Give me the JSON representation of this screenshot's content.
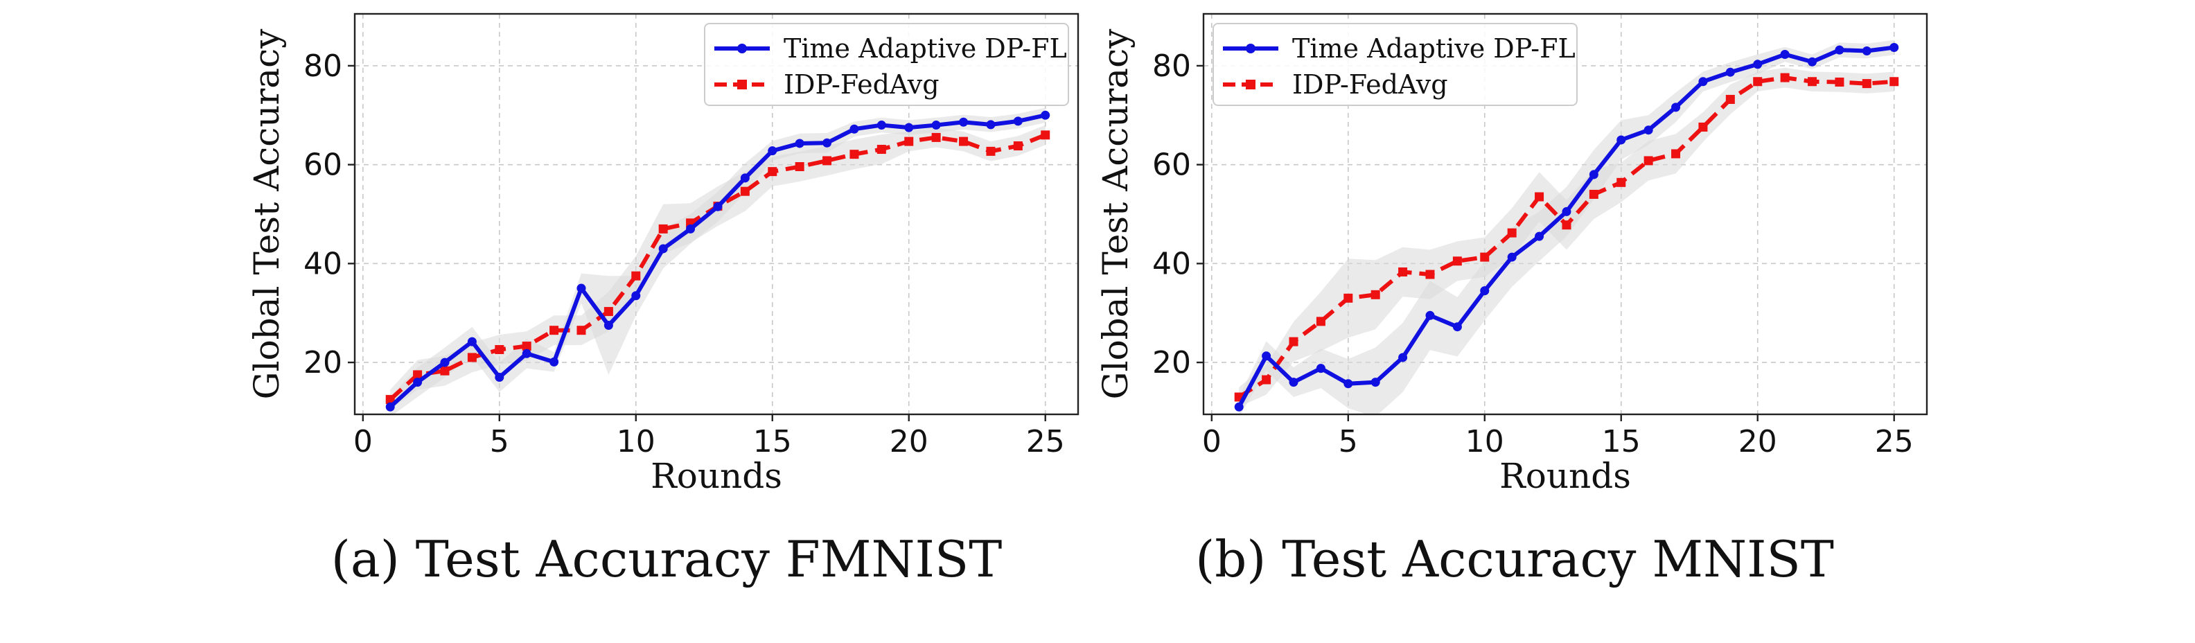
{
  "colors": {
    "series_a": "#1010e0",
    "series_b": "#ee1111",
    "band": "#d9d9d9"
  },
  "chart_data": [
    {
      "type": "line",
      "caption": "(a) Test Accuracy FMNIST",
      "xlabel": "Rounds",
      "ylabel": "Global Test Accuracy",
      "xlim": [
        -0.3,
        26.2
      ],
      "ylim": [
        9.5,
        90.5
      ],
      "xticks": [
        0,
        5,
        10,
        15,
        20,
        25
      ],
      "yticks": [
        20,
        40,
        60,
        80
      ],
      "grid": true,
      "legend_position": "top-right",
      "x": [
        1,
        2,
        3,
        4,
        5,
        6,
        7,
        8,
        9,
        10,
        11,
        12,
        13,
        14,
        15,
        16,
        17,
        18,
        19,
        20,
        21,
        22,
        23,
        24,
        25
      ],
      "series": [
        {
          "name": "Time Adaptive DP-FL",
          "style": "solid-circle",
          "values": [
            11.0,
            16.0,
            20.0,
            24.2,
            17.0,
            21.8,
            20.1,
            35.0,
            27.5,
            33.5,
            43.0,
            47.0,
            51.5,
            57.3,
            62.8,
            64.3,
            64.4,
            67.2,
            68.0,
            67.5,
            68.0,
            68.6,
            68.1,
            68.8,
            70.0
          ],
          "band": [
            2,
            3,
            3,
            3,
            3,
            3,
            2,
            3,
            10,
            4,
            4,
            3,
            3,
            3,
            2,
            2,
            2,
            1.5,
            1.5,
            1.5,
            1.5,
            1.5,
            1.5,
            1.5,
            1.5
          ]
        },
        {
          "name": "IDP-FedAvg",
          "style": "dashed-square",
          "values": [
            12.5,
            17.5,
            18.3,
            21.0,
            22.6,
            23.3,
            26.5,
            26.5,
            30.3,
            37.5,
            47.0,
            48.2,
            51.6,
            54.6,
            58.6,
            59.6,
            60.8,
            62.1,
            63.1,
            64.7,
            65.5,
            64.7,
            62.7,
            63.8,
            66.0
          ],
          "band": [
            2,
            3,
            3,
            3,
            3,
            3,
            3,
            3,
            4,
            4,
            5,
            4,
            4,
            4,
            3,
            3,
            3,
            3,
            3,
            2,
            2,
            2,
            2,
            2,
            2
          ]
        }
      ]
    },
    {
      "type": "line",
      "caption": "(b) Test Accuracy MNIST",
      "xlabel": "Rounds",
      "ylabel": "Global Test Accuracy",
      "xlim": [
        -0.3,
        26.2
      ],
      "ylim": [
        9.5,
        90.5
      ],
      "xticks": [
        0,
        5,
        10,
        15,
        20,
        25
      ],
      "yticks": [
        20,
        40,
        60,
        80
      ],
      "grid": true,
      "legend_position": "top-left",
      "x": [
        1,
        2,
        3,
        4,
        5,
        6,
        7,
        8,
        9,
        10,
        11,
        12,
        13,
        14,
        15,
        16,
        17,
        18,
        19,
        20,
        21,
        22,
        23,
        24,
        25
      ],
      "series": [
        {
          "name": "Time Adaptive DP-FL",
          "style": "solid-circle",
          "values": [
            11.0,
            21.3,
            16.0,
            18.8,
            15.7,
            16.0,
            21.0,
            29.5,
            27.2,
            34.5,
            41.3,
            45.5,
            50.5,
            58.0,
            65.0,
            67.0,
            71.6,
            76.8,
            78.7,
            80.3,
            82.3,
            80.8,
            83.2,
            83.0,
            83.7
          ],
          "band": [
            2,
            3,
            3,
            4,
            5,
            7,
            7,
            7,
            6,
            6,
            6,
            5,
            5,
            5,
            4,
            3,
            3,
            2,
            2,
            2,
            1.5,
            1.5,
            1.5,
            1.5,
            1.5
          ]
        },
        {
          "name": "IDP-FedAvg",
          "style": "dashed-square",
          "values": [
            13.0,
            16.5,
            24.2,
            28.3,
            33.0,
            33.7,
            38.3,
            37.8,
            40.5,
            41.3,
            46.2,
            53.5,
            47.8,
            54.0,
            56.4,
            60.8,
            62.2,
            67.6,
            73.2,
            76.8,
            77.6,
            76.8,
            76.7,
            76.4,
            76.8
          ],
          "band": [
            2,
            3,
            4,
            6,
            8,
            7,
            5,
            5,
            4,
            4,
            5,
            5,
            5,
            5,
            4,
            4,
            4,
            3,
            3,
            2,
            2,
            2,
            2,
            2,
            2
          ]
        }
      ]
    }
  ]
}
